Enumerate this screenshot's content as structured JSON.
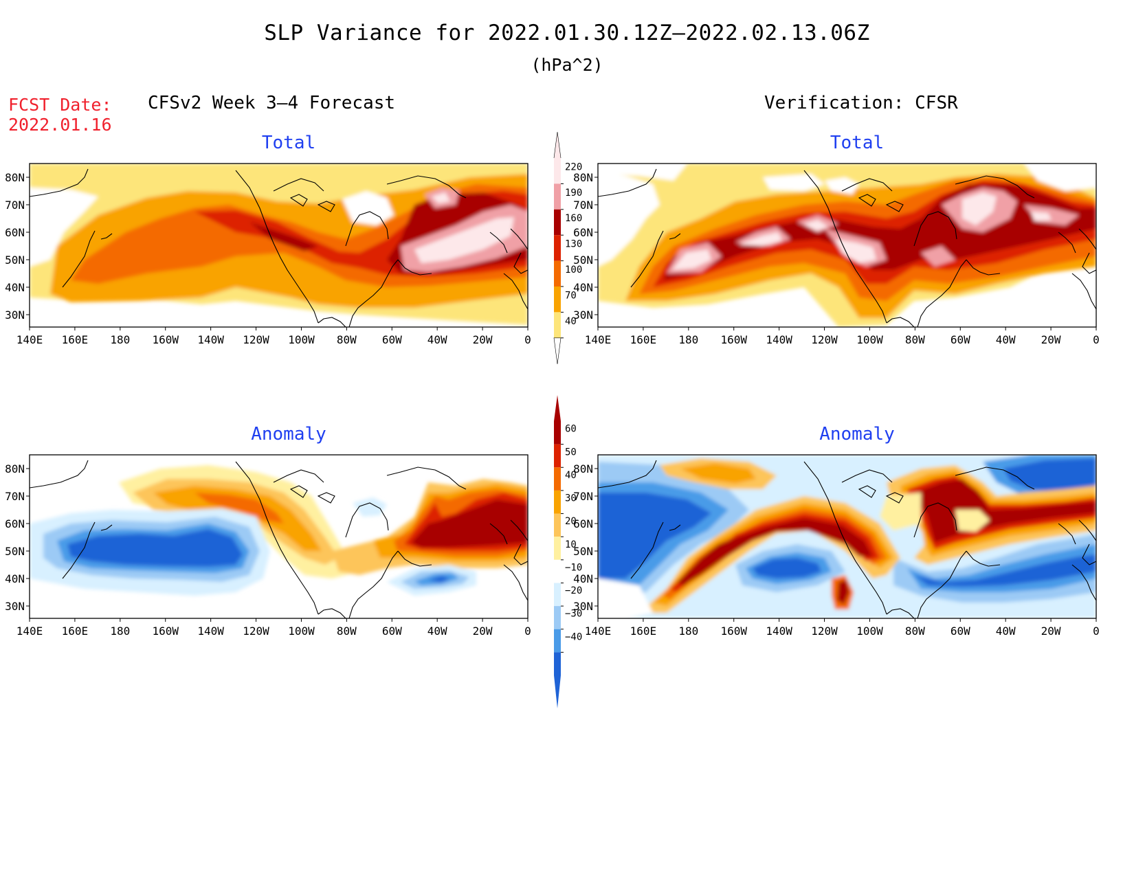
{
  "title": "SLP Variance for 2022.01.30.12Z—2022.02.13.06Z",
  "units": "(hPa^2)",
  "fcst_date": {
    "label": "FCST Date:",
    "value": "2022.01.16"
  },
  "left_header": "CFSv2 Week 3—4 Forecast",
  "right_header": "Verification: CFSR",
  "panel_subtitles": {
    "total": "Total",
    "anomaly": "Anomaly"
  },
  "axes": {
    "lat_labels": [
      "80N",
      "70N",
      "60N",
      "50N",
      "40N",
      "30N"
    ],
    "lon_labels": [
      "140E",
      "160E",
      "180",
      "160W",
      "140W",
      "120W",
      "100W",
      "80W",
      "60W",
      "40W",
      "20W",
      "0"
    ]
  },
  "colorbars": {
    "total": {
      "levels": [
        "220",
        "190",
        "160",
        "130",
        "100",
        "70",
        "40"
      ],
      "colors": [
        "#fde8ea",
        "#f0a0a6",
        "#a80000",
        "#dd2200",
        "#f46a00",
        "#f9a300",
        "#fde57a"
      ]
    },
    "anomaly": {
      "levels": [
        "60",
        "50",
        "40",
        "30",
        "20",
        "10",
        "−10",
        "−20",
        "−30",
        "−40"
      ],
      "colors": [
        "#a80000",
        "#dd2200",
        "#f46a00",
        "#f9a300",
        "#fdc55a",
        "#fff0a0",
        "#ffffff",
        "#d8f0ff",
        "#9ccaf5",
        "#4a9be8",
        "#1f63d6"
      ]
    }
  },
  "chart_data": [
    {
      "type": "heatmap",
      "panel": "CFSv2 Week 3—4 Forecast",
      "field": "Total",
      "x_range": [
        "140E",
        "0"
      ],
      "y_range": [
        "25N",
        "85N"
      ]
    },
    {
      "type": "heatmap",
      "panel": "Verification: CFSR",
      "field": "Total",
      "x_range": [
        "140E",
        "0"
      ],
      "y_range": [
        "25N",
        "85N"
      ]
    },
    {
      "type": "heatmap",
      "panel": "CFSv2 Week 3—4 Forecast",
      "field": "Anomaly",
      "x_range": [
        "140E",
        "0"
      ],
      "y_range": [
        "25N",
        "85N"
      ]
    },
    {
      "type": "heatmap",
      "panel": "Verification: CFSR",
      "field": "Anomaly",
      "x_range": [
        "140E",
        "0"
      ],
      "y_range": [
        "25N",
        "85N"
      ]
    }
  ]
}
